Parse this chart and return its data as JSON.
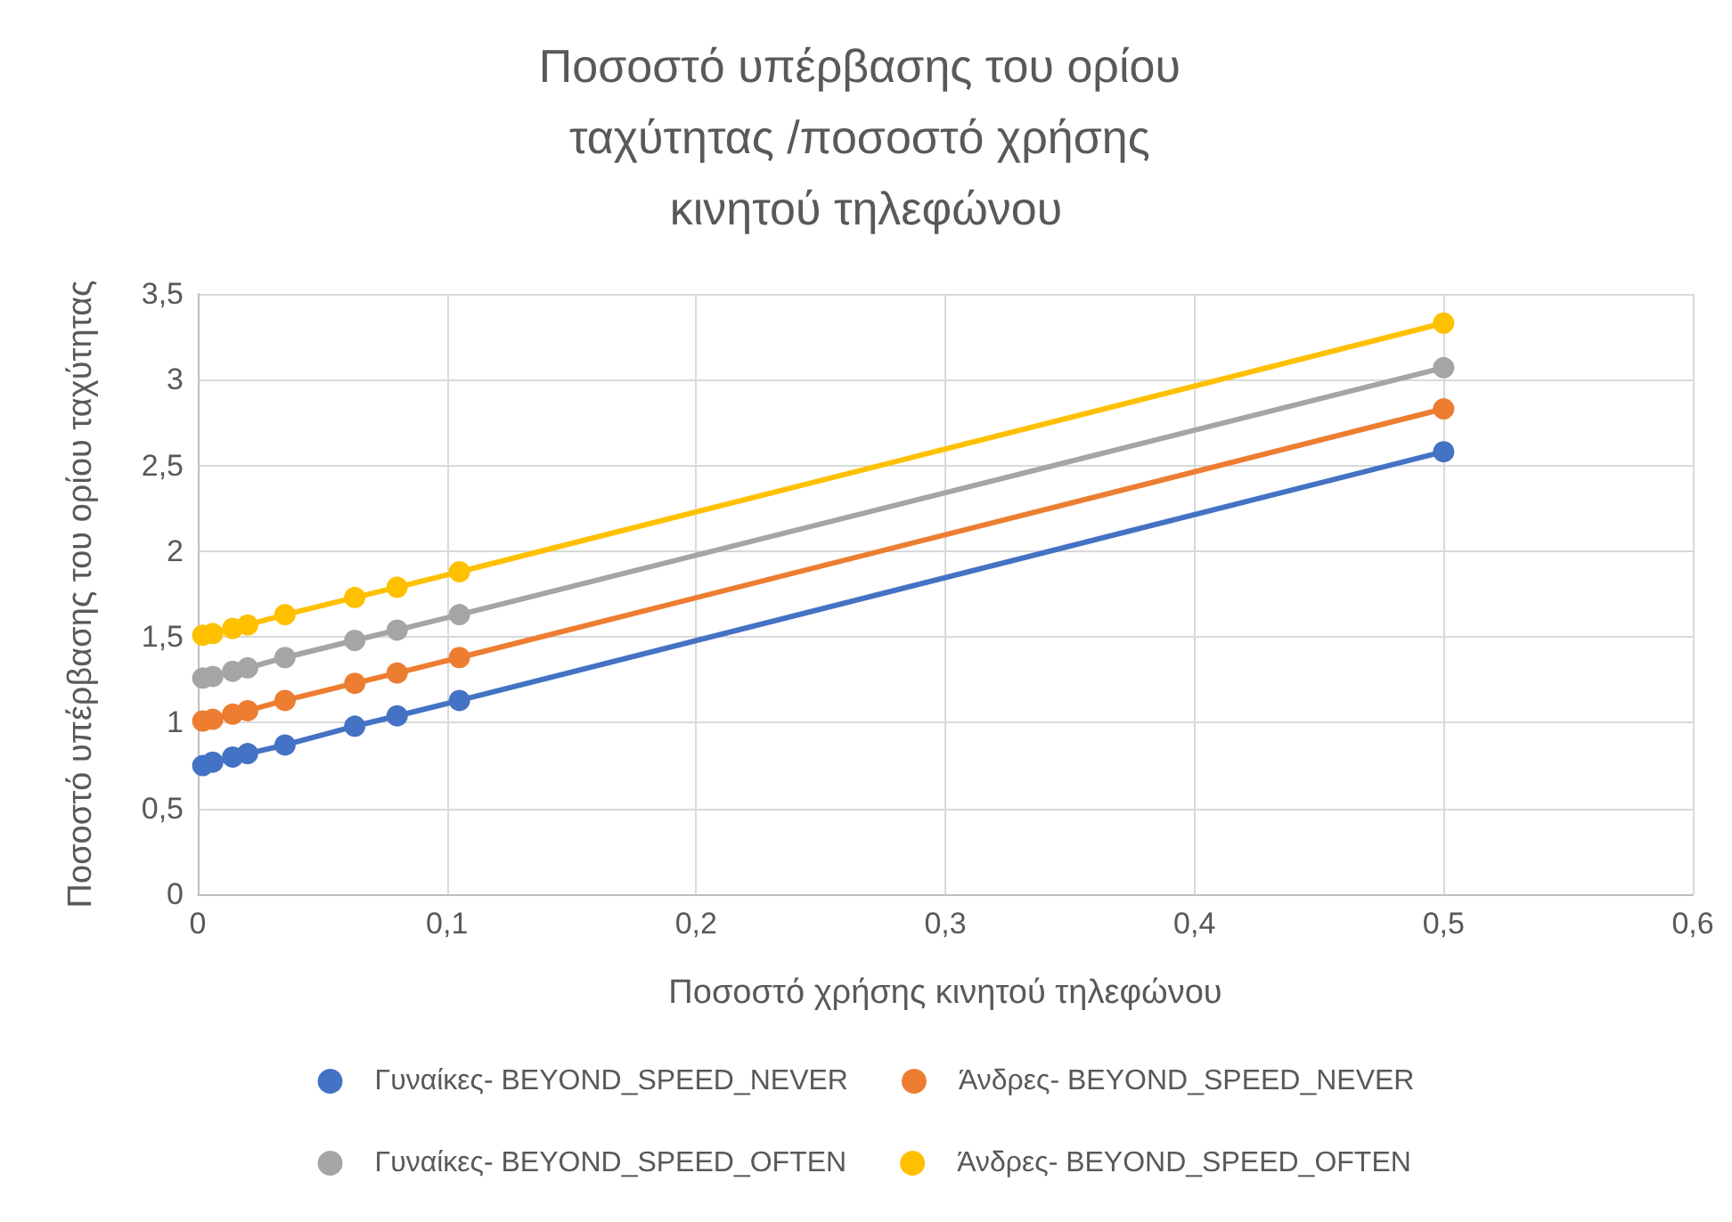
{
  "chart_data": {
    "type": "line",
    "title": "Ποσοστό υπέρβασης του ορίου ταχύτητας /ποσοστό χρήσης κινητού τηλεφώνου",
    "xlabel": "Ποσοστό χρήσης κινητού τηλεφώνου",
    "ylabel": "Ποσοστό υπέρβασης του ορίου ταχύτητας",
    "x": [
      0.002,
      0.006,
      0.014,
      0.02,
      0.035,
      0.063,
      0.08,
      0.105,
      0.5
    ],
    "series": [
      {
        "name": "Γυναίκες- BEYOND_SPEED_NEVER",
        "color": "#4472c4",
        "values": [
          0.75,
          0.77,
          0.8,
          0.82,
          0.87,
          0.98,
          1.04,
          1.13,
          2.58
        ]
      },
      {
        "name": "Άνδρες- BEYOND_SPEED_NEVER",
        "color": "#ed7d31",
        "values": [
          1.01,
          1.02,
          1.05,
          1.07,
          1.13,
          1.23,
          1.29,
          1.38,
          2.83
        ]
      },
      {
        "name": "Γυναίκες- BEYOND_SPEED_OFTEN",
        "color": "#a5a5a5",
        "values": [
          1.26,
          1.27,
          1.3,
          1.32,
          1.38,
          1.48,
          1.54,
          1.63,
          3.07
        ]
      },
      {
        "name": "Άνδρες- BEYOND_SPEED_OFTEN",
        "color": "#ffc000",
        "values": [
          1.51,
          1.52,
          1.55,
          1.57,
          1.63,
          1.73,
          1.79,
          1.88,
          3.33
        ]
      }
    ],
    "xlim": [
      0,
      0.6
    ],
    "xticks": [
      {
        "value": 0,
        "label": "0"
      },
      {
        "value": 0.1,
        "label": "0,1"
      },
      {
        "value": 0.2,
        "label": "0,2"
      },
      {
        "value": 0.3,
        "label": "0,3"
      },
      {
        "value": 0.4,
        "label": "0,4"
      },
      {
        "value": 0.5,
        "label": "0,5"
      },
      {
        "value": 0.6,
        "label": "0,6"
      }
    ],
    "ylim": [
      0,
      3.5
    ],
    "yticks": [
      {
        "value": 0,
        "label": "0"
      },
      {
        "value": 0.5,
        "label": "0,5"
      },
      {
        "value": 1,
        "label": "1"
      },
      {
        "value": 1.5,
        "label": "1,5"
      },
      {
        "value": 2,
        "label": "2"
      },
      {
        "value": 2.5,
        "label": "2,5"
      },
      {
        "value": 3,
        "label": "3"
      },
      {
        "value": 3.5,
        "label": "3,5"
      }
    ],
    "grid": true,
    "legend": "bottom",
    "marker": "circle",
    "line_style": "solid"
  }
}
